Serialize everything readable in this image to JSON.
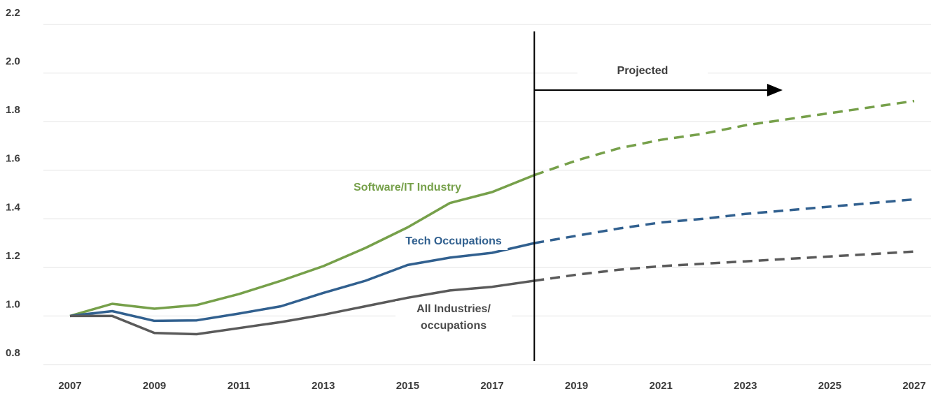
{
  "chart_data": {
    "type": "line",
    "x": [
      2007,
      2008,
      2009,
      2010,
      2011,
      2012,
      2013,
      2014,
      2015,
      2016,
      2017,
      2018,
      2019,
      2020,
      2021,
      2022,
      2023,
      2024,
      2025,
      2026,
      2027
    ],
    "xlim": [
      2007,
      2027
    ],
    "xticks": [
      2007,
      2009,
      2011,
      2013,
      2015,
      2017,
      2019,
      2021,
      2023,
      2025,
      2027
    ],
    "ylim": [
      0.8,
      2.2
    ],
    "yticks": [
      {
        "value": 0.8,
        "label": "0.8"
      },
      {
        "value": 1.0,
        "label": "1.0"
      },
      {
        "value": 1.2,
        "label": "1.2"
      },
      {
        "value": 1.4,
        "label": "1.4"
      },
      {
        "value": 1.6,
        "label": "1.6"
      },
      {
        "value": 1.8,
        "label": "1.8"
      },
      {
        "value": 2.0,
        "label": "2.0"
      },
      {
        "value": 2.2,
        "label": "2.2"
      }
    ],
    "grid": true,
    "projection_start": 2018,
    "projection_label": "Projected",
    "series": [
      {
        "name": "Software/IT Industry",
        "color": "#76a04a",
        "values": [
          1.0,
          1.05,
          1.03,
          1.045,
          1.09,
          1.145,
          1.205,
          1.28,
          1.365,
          1.465,
          1.51,
          1.58,
          1.64,
          1.69,
          1.725,
          1.75,
          1.785,
          1.81,
          1.835,
          1.86,
          1.885
        ]
      },
      {
        "name": "Tech Occupations",
        "color": "#31608f",
        "values": [
          1.0,
          1.02,
          0.98,
          0.982,
          1.01,
          1.04,
          1.095,
          1.145,
          1.21,
          1.24,
          1.26,
          1.3,
          1.33,
          1.36,
          1.385,
          1.4,
          1.42,
          1.435,
          1.45,
          1.465,
          1.48
        ]
      },
      {
        "name": "All Industries/ occupations",
        "color": "#5a5a5a",
        "values": [
          1.0,
          1.0,
          0.93,
          0.925,
          0.95,
          0.975,
          1.005,
          1.04,
          1.075,
          1.105,
          1.12,
          1.145,
          1.17,
          1.19,
          1.205,
          1.215,
          1.225,
          1.235,
          1.245,
          1.255,
          1.265
        ]
      }
    ]
  }
}
